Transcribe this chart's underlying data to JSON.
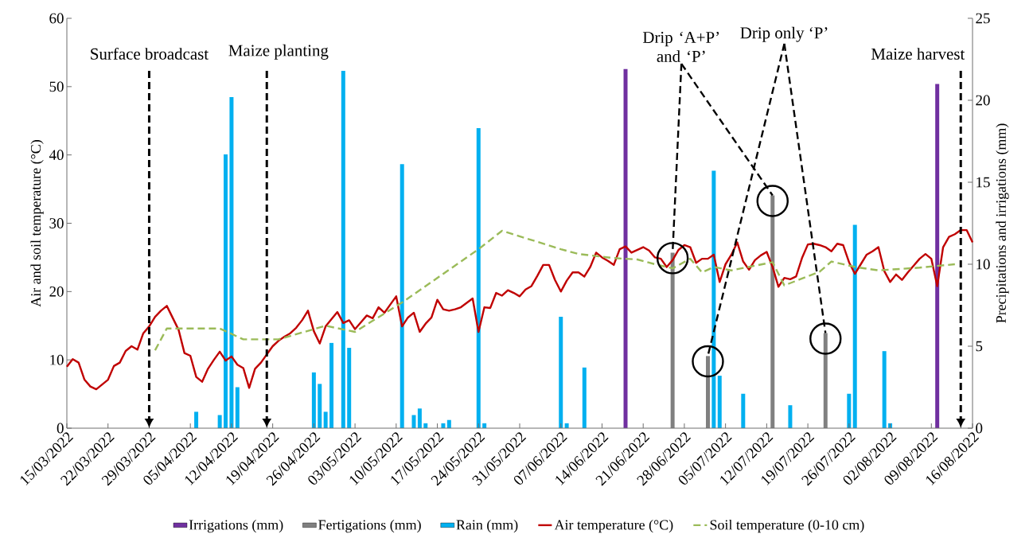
{
  "chart_data": {
    "type": "bar",
    "xlim": [
      "2022-03-15",
      "2022-08-16"
    ],
    "xticks": [
      {
        "value": "2022-03-15",
        "label": "15/03/2022"
      },
      {
        "value": "2022-03-22",
        "label": "22/03/2022"
      },
      {
        "value": "2022-03-29",
        "label": "29/03/2022"
      },
      {
        "value": "2022-04-05",
        "label": "05/04/2022"
      },
      {
        "value": "2022-04-12",
        "label": "12/04/2022"
      },
      {
        "value": "2022-04-19",
        "label": "19/04/2022"
      },
      {
        "value": "2022-04-26",
        "label": "26/04/2022"
      },
      {
        "value": "2022-05-03",
        "label": "03/05/2022"
      },
      {
        "value": "2022-05-10",
        "label": "10/05/2022"
      },
      {
        "value": "2022-05-17",
        "label": "17/05/2022"
      },
      {
        "value": "2022-05-24",
        "label": "24/05/2022"
      },
      {
        "value": "2022-05-31",
        "label": "31/05/2022"
      },
      {
        "value": "2022-06-07",
        "label": "07/06/2022"
      },
      {
        "value": "2022-06-14",
        "label": "14/06/2022"
      },
      {
        "value": "2022-06-21",
        "label": "21/06/2022"
      },
      {
        "value": "2022-06-28",
        "label": "28/06/2022"
      },
      {
        "value": "2022-07-05",
        "label": "05/07/2022"
      },
      {
        "value": "2022-07-12",
        "label": "12/07/2022"
      },
      {
        "value": "2022-07-19",
        "label": "19/07/2022"
      },
      {
        "value": "2022-07-26",
        "label": "26/07/2022"
      },
      {
        "value": "2022-08-02",
        "label": "02/08/2022"
      },
      {
        "value": "2022-08-09",
        "label": "09/08/2022"
      },
      {
        "value": "2022-08-16",
        "label": "16/08/2022"
      }
    ],
    "ylim": [
      0,
      60
    ],
    "yticks": [
      0,
      10,
      20,
      30,
      40,
      50,
      60
    ],
    "y2lim": [
      0,
      25
    ],
    "y2ticks": [
      0,
      5,
      10,
      15,
      20,
      25
    ],
    "ylabel": "Air and soil temperature (°C)",
    "y2label": "Precipitations and irrigations (mm)",
    "legend": "bottom",
    "series": [
      {
        "name": "Irrigations (mm)",
        "axis": "y2",
        "color": "#7030a0",
        "x": [
          "2022-06-18",
          "2022-08-10"
        ],
        "values": [
          21.9,
          21.0
        ]
      },
      {
        "name": "Fertigations (mm)",
        "axis": "y2",
        "color": "#808080",
        "x": [
          "2022-06-26",
          "2022-07-02",
          "2022-07-13",
          "2022-07-22"
        ],
        "values": [
          10.7,
          4.4,
          14.2,
          5.8
        ]
      },
      {
        "name": "Rain (mm)",
        "axis": "y2",
        "color": "#00b0f0",
        "x": [
          "2022-04-06",
          "2022-04-10",
          "2022-04-11",
          "2022-04-12",
          "2022-04-13",
          "2022-04-26",
          "2022-04-27",
          "2022-04-28",
          "2022-04-29",
          "2022-05-01",
          "2022-05-02",
          "2022-05-11",
          "2022-05-13",
          "2022-05-14",
          "2022-05-15",
          "2022-05-18",
          "2022-05-19",
          "2022-05-24",
          "2022-05-25",
          "2022-06-07",
          "2022-06-08",
          "2022-06-11",
          "2022-07-03",
          "2022-07-04",
          "2022-07-08",
          "2022-07-16",
          "2022-07-26",
          "2022-07-27",
          "2022-08-01",
          "2022-08-02"
        ],
        "values": [
          1.0,
          0.8,
          16.7,
          20.2,
          2.5,
          3.4,
          2.7,
          1.0,
          5.2,
          21.8,
          4.9,
          16.1,
          0.8,
          1.2,
          0.3,
          0.3,
          0.5,
          18.3,
          0.3,
          6.8,
          0.3,
          3.7,
          15.7,
          3.2,
          2.1,
          1.4,
          2.1,
          12.4,
          4.7,
          0.3
        ]
      },
      {
        "name": "Air temperature (°C)",
        "type": "line",
        "line_style": "solid",
        "color": "#c00000",
        "x": [
          "2022-03-15",
          "2022-03-16",
          "2022-03-17",
          "2022-03-18",
          "2022-03-19",
          "2022-03-20",
          "2022-03-22",
          "2022-03-23",
          "2022-03-24",
          "2022-03-25",
          "2022-03-26",
          "2022-03-27",
          "2022-03-28",
          "2022-03-29",
          "2022-03-30",
          "2022-03-31",
          "2022-04-01",
          "2022-04-03",
          "2022-04-04",
          "2022-04-05",
          "2022-04-06",
          "2022-04-07",
          "2022-04-08",
          "2022-04-09",
          "2022-04-10",
          "2022-04-11",
          "2022-04-12",
          "2022-04-13",
          "2022-04-14",
          "2022-04-15",
          "2022-04-16",
          "2022-04-17",
          "2022-04-18",
          "2022-04-19",
          "2022-04-20",
          "2022-04-21",
          "2022-04-22",
          "2022-04-23",
          "2022-04-24",
          "2022-04-25",
          "2022-04-26",
          "2022-04-27",
          "2022-04-28",
          "2022-04-30",
          "2022-05-01",
          "2022-05-02",
          "2022-05-03",
          "2022-05-04",
          "2022-05-05",
          "2022-05-06",
          "2022-05-07",
          "2022-05-08",
          "2022-05-09",
          "2022-05-10",
          "2022-05-11",
          "2022-05-12",
          "2022-05-13",
          "2022-05-14",
          "2022-05-15",
          "2022-05-16",
          "2022-05-17",
          "2022-05-18",
          "2022-05-19",
          "2022-05-20",
          "2022-05-21",
          "2022-05-23",
          "2022-05-24",
          "2022-05-25",
          "2022-05-26",
          "2022-05-27",
          "2022-05-28",
          "2022-05-29",
          "2022-05-30",
          "2022-05-31",
          "2022-06-01",
          "2022-06-02",
          "2022-06-03",
          "2022-06-04",
          "2022-06-05",
          "2022-06-06",
          "2022-06-07",
          "2022-06-08",
          "2022-06-09",
          "2022-06-10",
          "2022-06-11",
          "2022-06-12",
          "2022-06-13",
          "2022-06-14",
          "2022-06-15",
          "2022-06-16",
          "2022-06-17",
          "2022-06-18",
          "2022-06-19",
          "2022-06-21",
          "2022-06-22",
          "2022-06-23",
          "2022-06-24",
          "2022-06-25",
          "2022-06-26",
          "2022-06-27",
          "2022-06-28",
          "2022-06-29",
          "2022-06-30",
          "2022-07-01",
          "2022-07-02",
          "2022-07-03",
          "2022-07-04",
          "2022-07-05",
          "2022-07-06",
          "2022-07-07",
          "2022-07-08",
          "2022-07-09",
          "2022-07-10",
          "2022-07-11",
          "2022-07-12",
          "2022-07-13",
          "2022-07-14",
          "2022-07-15",
          "2022-07-16",
          "2022-07-17",
          "2022-07-18",
          "2022-07-19",
          "2022-07-20",
          "2022-07-21",
          "2022-07-22",
          "2022-07-23",
          "2022-07-24",
          "2022-07-25",
          "2022-07-26",
          "2022-07-27",
          "2022-07-28",
          "2022-07-29",
          "2022-07-30",
          "2022-07-31",
          "2022-08-01",
          "2022-08-02",
          "2022-08-03",
          "2022-08-04",
          "2022-08-05",
          "2022-08-06",
          "2022-08-07",
          "2022-08-08",
          "2022-08-09",
          "2022-08-10",
          "2022-08-11",
          "2022-08-12",
          "2022-08-13",
          "2022-08-14",
          "2022-08-15",
          "2022-08-16"
        ],
        "values": [
          9.0,
          10.1,
          9.6,
          7.1,
          6.1,
          5.7,
          7.1,
          9.1,
          9.6,
          11.3,
          12.0,
          11.5,
          13.9,
          14.9,
          16.3,
          17.2,
          17.9,
          14.4,
          11.0,
          10.6,
          7.5,
          6.8,
          8.7,
          10.0,
          11.2,
          9.9,
          10.5,
          9.3,
          8.8,
          5.9,
          8.7,
          9.6,
          10.8,
          12.0,
          12.8,
          13.4,
          13.9,
          14.7,
          15.8,
          17.2,
          14.2,
          12.4,
          14.9,
          17.0,
          15.4,
          15.8,
          14.5,
          15.5,
          16.5,
          16.1,
          17.7,
          16.9,
          18.1,
          19.3,
          14.9,
          16.2,
          16.9,
          14.1,
          15.3,
          16.2,
          18.8,
          17.4,
          17.2,
          17.4,
          17.7,
          19.0,
          14.1,
          17.7,
          17.6,
          19.8,
          19.4,
          20.2,
          19.8,
          19.3,
          20.3,
          20.8,
          22.3,
          23.9,
          23.9,
          21.7,
          20.0,
          21.6,
          22.8,
          22.8,
          22.2,
          23.6,
          25.7,
          25.0,
          24.5,
          23.9,
          26.2,
          26.6,
          25.7,
          26.5,
          26.0,
          25.0,
          24.8,
          23.6,
          24.6,
          26.1,
          26.8,
          26.5,
          24.2,
          24.8,
          24.8,
          25.4,
          21.4,
          24.0,
          25.4,
          27.2,
          24.4,
          23.2,
          24.6,
          25.3,
          25.8,
          23.6,
          20.7,
          22.0,
          21.8,
          22.2,
          24.9,
          26.9,
          27.0,
          26.8,
          26.5,
          25.9,
          27.0,
          26.8,
          24.3,
          22.6,
          24.0,
          25.4,
          25.9,
          26.5,
          23.0,
          21.4,
          22.5,
          21.7,
          22.8,
          23.8,
          24.8,
          25.5,
          24.8,
          20.8,
          26.5,
          28.0,
          28.4,
          29.0,
          29.0,
          27.2
        ]
      },
      {
        "name": "Soil temperature (0-10 cm)",
        "type": "line",
        "line_style": "dashed",
        "color": "#9bbb59",
        "x": [
          "2022-03-30",
          "2022-04-01",
          "2022-04-10",
          "2022-04-14",
          "2022-04-20",
          "2022-04-28",
          "2022-05-03",
          "2022-05-11",
          "2022-05-24",
          "2022-05-28",
          "2022-06-07",
          "2022-06-10",
          "2022-06-16",
          "2022-06-20",
          "2022-06-23",
          "2022-06-26",
          "2022-06-29",
          "2022-07-01",
          "2022-07-03",
          "2022-07-06",
          "2022-07-13",
          "2022-07-15",
          "2022-07-21",
          "2022-07-23",
          "2022-07-27",
          "2022-07-31",
          "2022-08-07",
          "2022-08-13"
        ],
        "values": [
          11.4,
          14.6,
          14.6,
          13.0,
          13.0,
          15.0,
          14.1,
          18.4,
          26.2,
          28.9,
          26.2,
          25.5,
          24.9,
          24.7,
          24.0,
          23.4,
          24.8,
          22.8,
          23.6,
          23.1,
          24.3,
          20.9,
          22.9,
          24.4,
          23.6,
          23.1,
          23.5,
          24.0
        ]
      }
    ],
    "ref_lines": [
      {
        "axis": "x",
        "value": "2022-03-29",
        "label": "Surface broadcast",
        "line_style": "dashed",
        "color": "#000000"
      },
      {
        "axis": "x",
        "value": "2022-04-18",
        "label": "Maize planting",
        "line_style": "dashed",
        "color": "#000000"
      },
      {
        "axis": "x",
        "value": "2022-08-14",
        "label": "Maize harvest",
        "line_style": "dashed",
        "color": "#000000"
      }
    ],
    "annotations": [
      {
        "text": "Drip ‘A+P’ and ‘P’",
        "x": "2022-06-26",
        "y": 25.7
      },
      {
        "text": "Drip only ‘P’",
        "x": "2022-07-02",
        "y": 10.6
      }
    ]
  }
}
